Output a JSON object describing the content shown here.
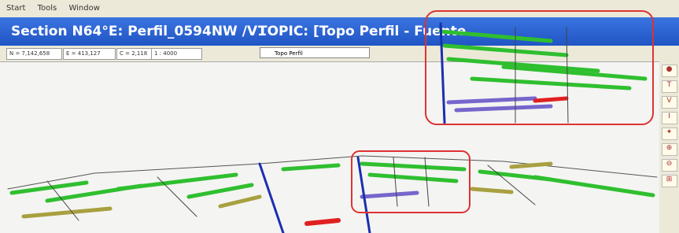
{
  "menu": [
    "Start",
    "Tools",
    "Window"
  ],
  "window": {
    "title": "Section N64°E: Perfil_0594NW /V1",
    "topic": "TOPIC: [Topo Perfil - Fuente"
  },
  "toolbar": {
    "fields": [
      "N = 7,142,658",
      "E = 413,127",
      "C = 2,118",
      "1 : 4000"
    ],
    "dropdown": "Topo Perfil"
  },
  "sidebar": [
    "T",
    "V",
    "I"
  ]
}
